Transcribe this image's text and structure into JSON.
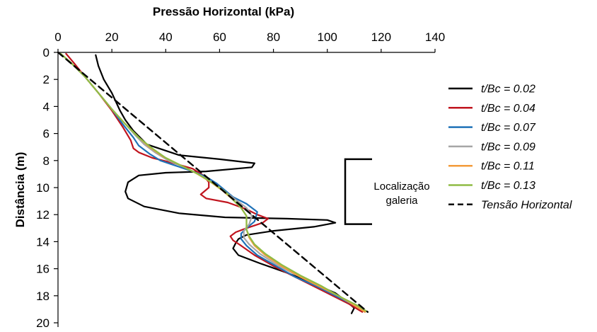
{
  "chart_data": {
    "type": "line",
    "xlabel": "Pressão Horizontal (kPa)",
    "ylabel": "Distância (m)",
    "xlim": [
      0,
      140
    ],
    "ylim": [
      0,
      20
    ],
    "x_ticks": [
      0,
      20,
      40,
      60,
      80,
      100,
      120,
      140
    ],
    "y_ticks": [
      0,
      2,
      4,
      6,
      8,
      10,
      12,
      14,
      16,
      18,
      20
    ],
    "x_axis_position": "top",
    "y_inverted": true,
    "grid": false,
    "legend_position": "right",
    "series": [
      {
        "name": "t/Bc = 0.02",
        "color": "#000000",
        "dash": "solid",
        "points": [
          [
            14,
            0.2
          ],
          [
            15,
            1
          ],
          [
            17,
            2
          ],
          [
            20,
            3
          ],
          [
            23,
            4.3
          ],
          [
            25,
            5
          ],
          [
            28,
            5.8
          ],
          [
            33,
            6.8
          ],
          [
            45,
            7.6
          ],
          [
            60,
            7.9
          ],
          [
            73,
            8.2
          ],
          [
            72,
            8.5
          ],
          [
            55,
            8.8
          ],
          [
            40,
            8.9
          ],
          [
            30,
            9.1
          ],
          [
            26,
            9.6
          ],
          [
            25,
            10.3
          ],
          [
            26,
            10.8
          ],
          [
            32,
            11.4
          ],
          [
            45,
            11.9
          ],
          [
            62,
            12.2
          ],
          [
            85,
            12.3
          ],
          [
            100,
            12.4
          ],
          [
            103,
            12.6
          ],
          [
            95,
            12.9
          ],
          [
            80,
            13.2
          ],
          [
            70,
            13.5
          ],
          [
            67,
            13.8
          ],
          [
            66,
            14.1
          ],
          [
            65,
            14.5
          ],
          [
            67,
            15
          ],
          [
            75,
            15.6
          ],
          [
            85,
            16.3
          ],
          [
            95,
            17.1
          ],
          [
            103,
            17.8
          ],
          [
            107,
            18.4
          ],
          [
            110,
            18.9
          ],
          [
            109,
            19.3
          ]
        ]
      },
      {
        "name": "t/Bc = 0.04",
        "color": "#c0141e",
        "dash": "solid",
        "points": [
          [
            3,
            0.1
          ],
          [
            6,
            0.8
          ],
          [
            10,
            1.8
          ],
          [
            15,
            3
          ],
          [
            20,
            4.3
          ],
          [
            24,
            5.5
          ],
          [
            27,
            6.5
          ],
          [
            28,
            7.1
          ],
          [
            30,
            7.4
          ],
          [
            35,
            7.8
          ],
          [
            43,
            8.2
          ],
          [
            50,
            8.6
          ],
          [
            54,
            9.1
          ],
          [
            56,
            9.6
          ],
          [
            56,
            10
          ],
          [
            53,
            10.5
          ],
          [
            55,
            10.8
          ],
          [
            63,
            11.1
          ],
          [
            70,
            11.6
          ],
          [
            74,
            12
          ],
          [
            78,
            12.3
          ],
          [
            76,
            12.6
          ],
          [
            70,
            13
          ],
          [
            66,
            13.3
          ],
          [
            64,
            13.6
          ],
          [
            65,
            13.9
          ],
          [
            68,
            14.3
          ],
          [
            73,
            15
          ],
          [
            80,
            15.8
          ],
          [
            88,
            16.6
          ],
          [
            95,
            17.3
          ],
          [
            102,
            18
          ],
          [
            108,
            18.6
          ],
          [
            113,
            19.2
          ]
        ]
      },
      {
        "name": "t/Bc = 0.07",
        "color": "#1f72b8",
        "dash": "solid",
        "points": [
          [
            1,
            0.1
          ],
          [
            5,
            0.8
          ],
          [
            10,
            1.8
          ],
          [
            15,
            3
          ],
          [
            20,
            4.2
          ],
          [
            24,
            5.3
          ],
          [
            28,
            6.3
          ],
          [
            30,
            6.9
          ],
          [
            34,
            7.5
          ],
          [
            38,
            8
          ],
          [
            44,
            8.4
          ],
          [
            50,
            8.8
          ],
          [
            55,
            9.2
          ],
          [
            59,
            9.7
          ],
          [
            62,
            10.2
          ],
          [
            65,
            10.7
          ],
          [
            70,
            11.2
          ],
          [
            74,
            11.8
          ],
          [
            73,
            12.5
          ],
          [
            70,
            13
          ],
          [
            68,
            13.4
          ],
          [
            68,
            13.8
          ],
          [
            70,
            14.3
          ],
          [
            74,
            15
          ],
          [
            81,
            15.8
          ],
          [
            88,
            16.6
          ],
          [
            96,
            17.3
          ],
          [
            103,
            18
          ],
          [
            110,
            18.7
          ],
          [
            114,
            19.2
          ]
        ]
      },
      {
        "name": "t/Bc = 0.09",
        "color": "#a6a6a6",
        "dash": "solid",
        "points": [
          [
            1,
            0.1
          ],
          [
            5,
            0.8
          ],
          [
            10,
            1.8
          ],
          [
            15,
            3
          ],
          [
            20,
            4.2
          ],
          [
            25,
            5.3
          ],
          [
            29,
            6.2
          ],
          [
            32,
            6.8
          ],
          [
            36,
            7.4
          ],
          [
            41,
            8
          ],
          [
            47,
            8.5
          ],
          [
            53,
            9.1
          ],
          [
            58,
            9.7
          ],
          [
            62,
            10.3
          ],
          [
            66,
            10.9
          ],
          [
            70,
            11.5
          ],
          [
            72,
            12.1
          ],
          [
            71,
            12.7
          ],
          [
            69,
            13.2
          ],
          [
            69,
            13.7
          ],
          [
            71,
            14.2
          ],
          [
            75,
            14.9
          ],
          [
            82,
            15.8
          ],
          [
            90,
            16.6
          ],
          [
            97,
            17.3
          ],
          [
            104,
            18
          ],
          [
            110,
            18.7
          ],
          [
            114,
            19.2
          ]
        ]
      },
      {
        "name": "t/Bc = 0.11",
        "color": "#f39b3a",
        "dash": "solid",
        "points": [
          [
            1,
            0.1
          ],
          [
            5,
            0.8
          ],
          [
            10,
            1.8
          ],
          [
            15,
            3
          ],
          [
            20,
            4.2
          ],
          [
            25,
            5.3
          ],
          [
            30,
            6.3
          ],
          [
            34,
            7
          ],
          [
            39,
            7.7
          ],
          [
            45,
            8.3
          ],
          [
            51,
            8.9
          ],
          [
            56,
            9.5
          ],
          [
            61,
            10.2
          ],
          [
            65,
            10.9
          ],
          [
            68,
            11.5
          ],
          [
            70,
            12.1
          ],
          [
            70,
            12.6
          ],
          [
            70,
            13.1
          ],
          [
            71,
            13.7
          ],
          [
            73,
            14.3
          ],
          [
            77,
            15
          ],
          [
            83,
            15.8
          ],
          [
            90,
            16.6
          ],
          [
            98,
            17.4
          ],
          [
            105,
            18.1
          ],
          [
            110,
            18.7
          ],
          [
            114,
            19.2
          ]
        ]
      },
      {
        "name": "t/Bc = 0.13",
        "color": "#8fbc45",
        "dash": "solid",
        "points": [
          [
            1,
            0.1
          ],
          [
            5,
            0.8
          ],
          [
            10,
            1.8
          ],
          [
            15,
            3
          ],
          [
            20,
            4.2
          ],
          [
            25,
            5.3
          ],
          [
            30,
            6.3
          ],
          [
            35,
            7.1
          ],
          [
            40,
            7.8
          ],
          [
            46,
            8.4
          ],
          [
            52,
            9
          ],
          [
            57,
            9.6
          ],
          [
            62,
            10.3
          ],
          [
            65,
            10.9
          ],
          [
            68,
            11.5
          ],
          [
            70,
            12.1
          ],
          [
            70,
            12.6
          ],
          [
            70,
            13.1
          ],
          [
            71,
            13.6
          ],
          [
            73,
            14.2
          ],
          [
            77,
            14.9
          ],
          [
            83,
            15.7
          ],
          [
            90,
            16.5
          ],
          [
            98,
            17.3
          ],
          [
            105,
            18.1
          ],
          [
            111,
            18.7
          ],
          [
            115,
            19.2
          ]
        ]
      },
      {
        "name": "Tensão Horizontal",
        "color": "#000000",
        "dash": "dashed",
        "points": [
          [
            0,
            0
          ],
          [
            115,
            19.2
          ]
        ]
      }
    ],
    "annotations": [
      {
        "text_lines": [
          "Localização",
          "galeria"
        ],
        "bracket_depth_range": [
          7.9,
          12.7
        ]
      }
    ]
  }
}
